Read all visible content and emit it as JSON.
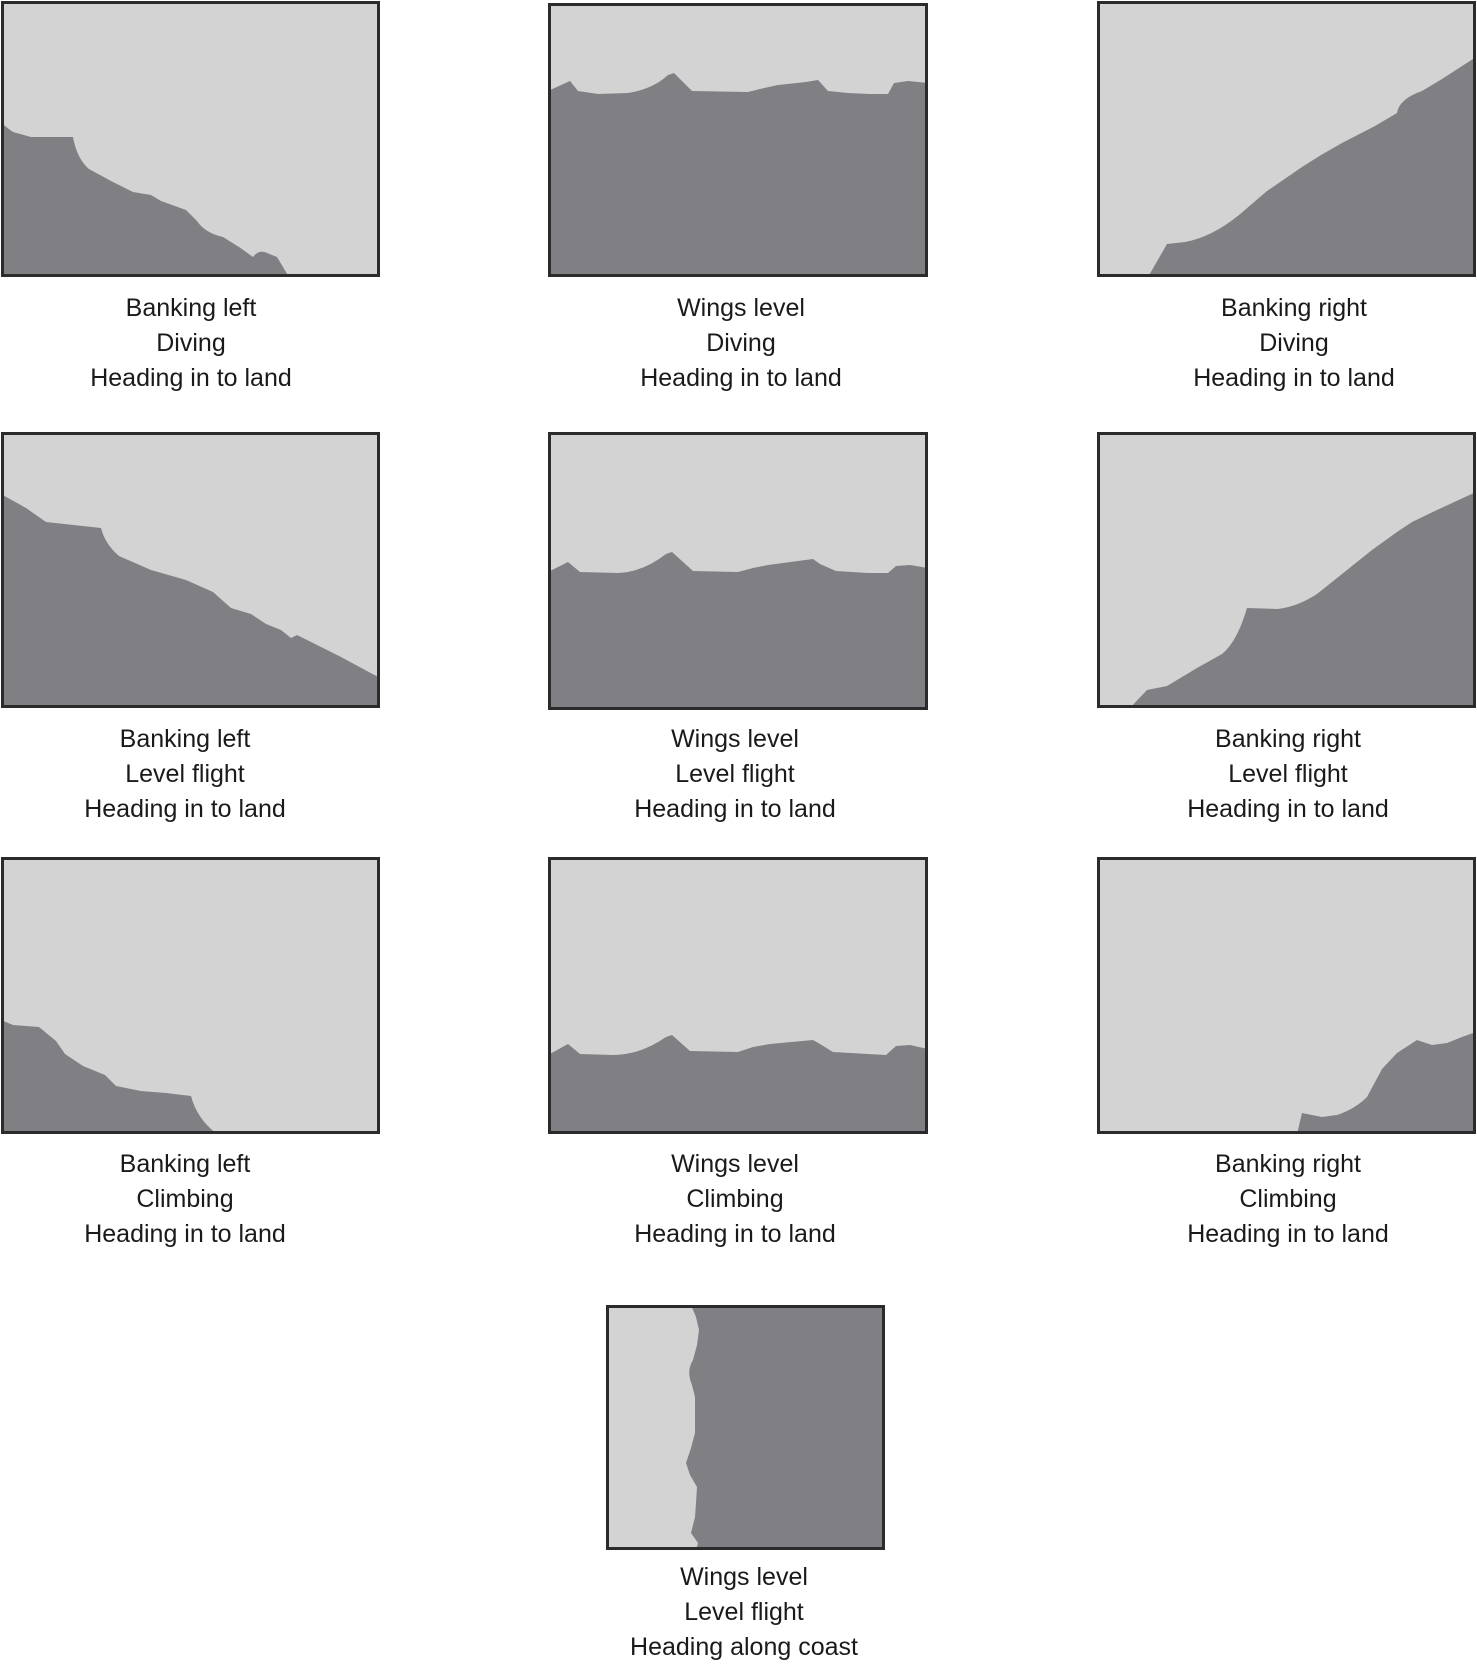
{
  "colors": {
    "sky": "#d3d3d3",
    "land": "#808084",
    "border": "#2b2b2b"
  },
  "panels": [
    {
      "id": "banking-left-diving",
      "lines": [
        "Banking left",
        "Diving",
        "Heading in to land"
      ]
    },
    {
      "id": "wings-level-diving",
      "lines": [
        "Wings level",
        "Diving",
        "Heading in to land"
      ]
    },
    {
      "id": "banking-right-diving",
      "lines": [
        "Banking right",
        "Diving",
        "Heading in to land"
      ]
    },
    {
      "id": "banking-left-level",
      "lines": [
        "Banking left",
        "Level flight",
        "Heading in to land"
      ]
    },
    {
      "id": "wings-level-level",
      "lines": [
        "Wings level",
        "Level flight",
        "Heading in to land"
      ]
    },
    {
      "id": "banking-right-level",
      "lines": [
        "Banking right",
        "Level flight",
        "Heading in to land"
      ]
    },
    {
      "id": "banking-left-climbing",
      "lines": [
        "Banking left",
        "Climbing",
        "Heading in to land"
      ]
    },
    {
      "id": "wings-level-climbing",
      "lines": [
        "Wings level",
        "Climbing",
        "Heading in to land"
      ]
    },
    {
      "id": "banking-right-climbing",
      "lines": [
        "Banking right",
        "Climbing",
        "Heading in to land"
      ]
    },
    {
      "id": "wings-level-along-coast",
      "lines": [
        "Wings level",
        "Level flight",
        "Heading along coast"
      ]
    }
  ]
}
